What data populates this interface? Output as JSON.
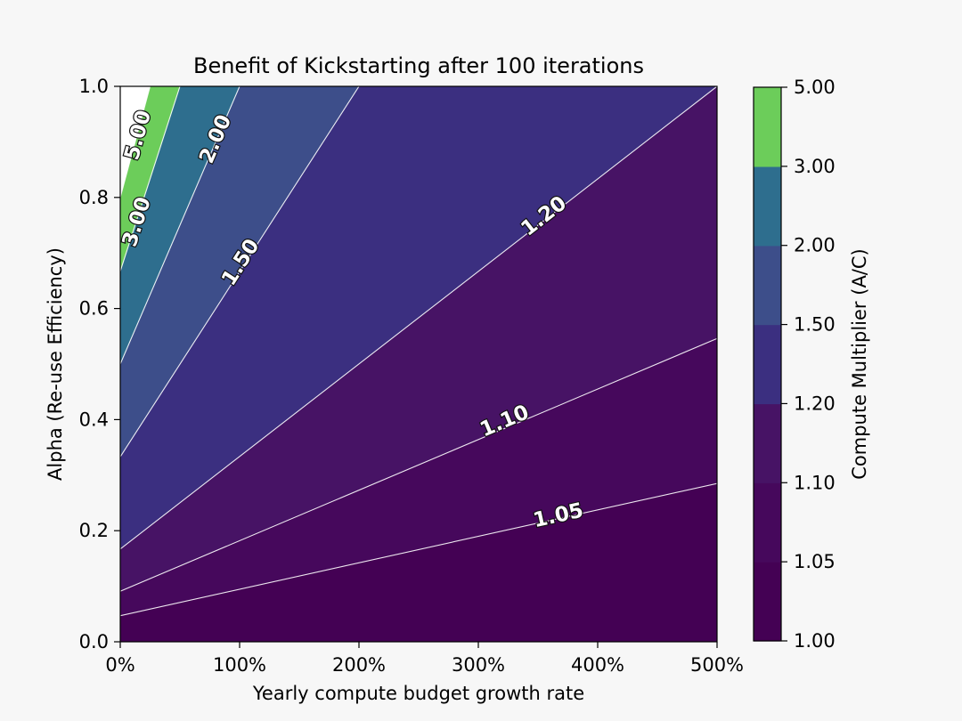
{
  "chart_data": {
    "type": "contour",
    "title": "Benefit of Kickstarting after 100 iterations",
    "xlabel": "Yearly compute budget growth rate",
    "ylabel": "Alpha (Re-use Efficiency)",
    "xlim": [
      0,
      500
    ],
    "ylim": [
      0.0,
      1.0
    ],
    "x_ticks": [
      0,
      100,
      200,
      300,
      400,
      500
    ],
    "x_tick_labels": [
      "0%",
      "100%",
      "200%",
      "300%",
      "400%",
      "500%"
    ],
    "y_ticks": [
      0.0,
      0.2,
      0.4,
      0.6,
      0.8,
      1.0
    ],
    "y_tick_labels": [
      "0.0",
      "0.2",
      "0.4",
      "0.6",
      "0.8",
      "1.0"
    ],
    "levels": [
      1.0,
      1.05,
      1.1,
      1.2,
      1.5,
      2.0,
      3.0,
      5.0
    ],
    "level_colors": [
      "#440154",
      "#46085c",
      "#471365",
      "#3b2f80",
      "#3d4e8a",
      "#2e6e8e",
      "#6ccd5a"
    ],
    "contour_lines": [
      {
        "level": 1.05,
        "label": "1.05",
        "points": [
          [
            0,
            0.047
          ],
          [
            500,
            0.285
          ]
        ]
      },
      {
        "level": 1.1,
        "label": "1.10",
        "points": [
          [
            0,
            0.091
          ],
          [
            500,
            0.546
          ]
        ]
      },
      {
        "level": 1.2,
        "label": "1.20",
        "points": [
          [
            0,
            0.167
          ],
          [
            500,
            1.0
          ]
        ]
      },
      {
        "level": 1.5,
        "label": "1.50",
        "points": [
          [
            0,
            0.333
          ],
          [
            200,
            1.0
          ]
        ]
      },
      {
        "level": 2.0,
        "label": "2.00",
        "points": [
          [
            0,
            0.5
          ],
          [
            100,
            1.0
          ]
        ]
      },
      {
        "level": 3.0,
        "label": "3.00",
        "points": [
          [
            0,
            0.667
          ],
          [
            50,
            1.0
          ]
        ]
      },
      {
        "level": 5.0,
        "label": "5.00",
        "points": [
          [
            0,
            0.8
          ],
          [
            25,
            1.0
          ]
        ]
      }
    ],
    "contour_labels": [
      {
        "text": "1.05",
        "x": 367,
        "y": 0.227
      },
      {
        "text": "1.10",
        "x": 322,
        "y": 0.397
      },
      {
        "text": "1.20",
        "x": 355,
        "y": 0.766
      },
      {
        "text": "1.50",
        "x": 101,
        "y": 0.683
      },
      {
        "text": "2.00",
        "x": 80,
        "y": 0.905
      },
      {
        "text": "3.00",
        "x": 14,
        "y": 0.756
      },
      {
        "text": "5.00",
        "x": 15,
        "y": 0.912
      }
    ],
    "colorbar": {
      "label": "Compute Multiplier (A/C)",
      "tick_labels": [
        "1.00",
        "1.05",
        "1.10",
        "1.20",
        "1.50",
        "2.00",
        "3.00",
        "5.00"
      ]
    },
    "grid": false
  }
}
